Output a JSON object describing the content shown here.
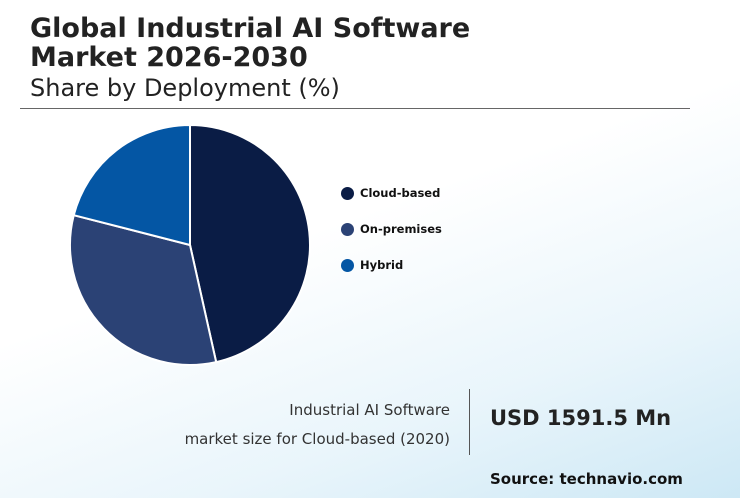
{
  "header": {
    "title_line1": "Global Industrial AI Software",
    "title_line2": "Market 2026-2030",
    "subtitle": "Share by Deployment (%)"
  },
  "chart_data": {
    "type": "pie",
    "title": "Global Industrial AI Software Market 2026-2030",
    "subtitle": "Share by Deployment (%)",
    "legend_position": "right",
    "slices": [
      {
        "label": "Cloud-based",
        "value": 46.5,
        "color": "#0a1c45"
      },
      {
        "label": "On-premises",
        "value": 32.5,
        "color": "#2b4275"
      },
      {
        "label": "Hybrid",
        "value": 21.0,
        "color": "#0456a4"
      }
    ]
  },
  "stat": {
    "line1": "Industrial AI Software",
    "line2": "market size for Cloud-based (2020)",
    "value": "USD 1591.5 Mn"
  },
  "footer": {
    "source": "Source: technavio.com"
  }
}
